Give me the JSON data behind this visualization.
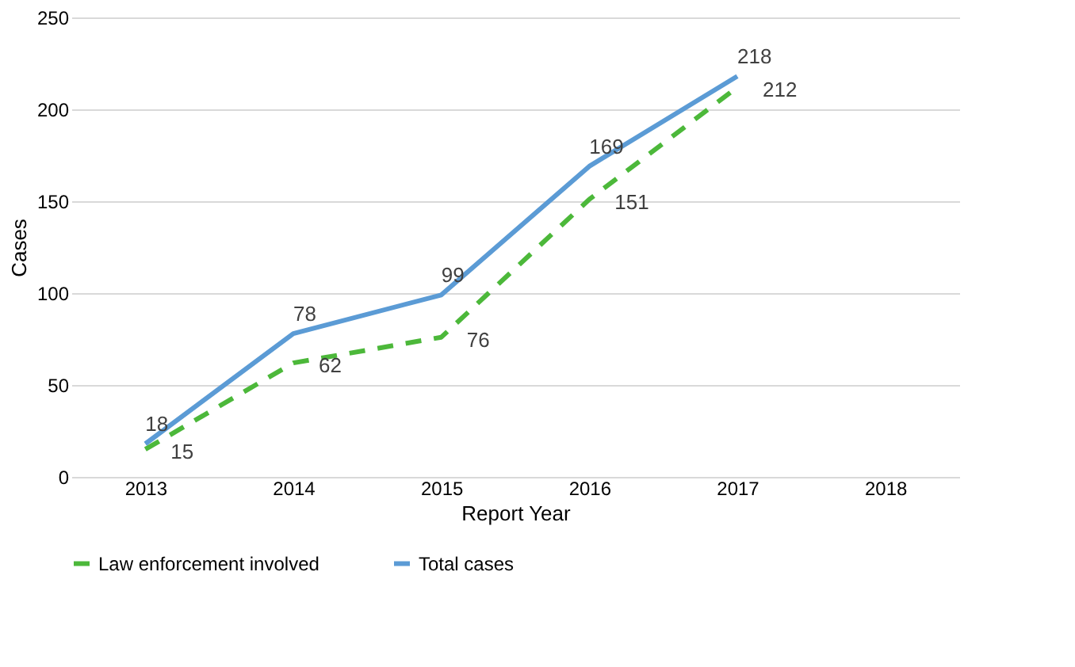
{
  "chart_data": {
    "type": "line",
    "xlabel": "Report Year",
    "ylabel": "Cases",
    "categories": [
      "2013",
      "2014",
      "2015",
      "2016",
      "2017",
      "2018"
    ],
    "series": [
      {
        "name": "Law enforcement involved",
        "color": "#4cb83a",
        "line_style": "dashed",
        "values": [
          15,
          62,
          76,
          151,
          212,
          null
        ]
      },
      {
        "name": "Total cases",
        "color": "#5b9bd5",
        "line_style": "solid",
        "values": [
          18,
          78,
          99,
          169,
          218,
          null
        ]
      }
    ],
    "ylim": [
      0,
      250
    ],
    "yticks": [
      0,
      50,
      100,
      150,
      200,
      250
    ],
    "grid": "y",
    "legend": "bottom",
    "data_labels": true,
    "marker": "none"
  }
}
